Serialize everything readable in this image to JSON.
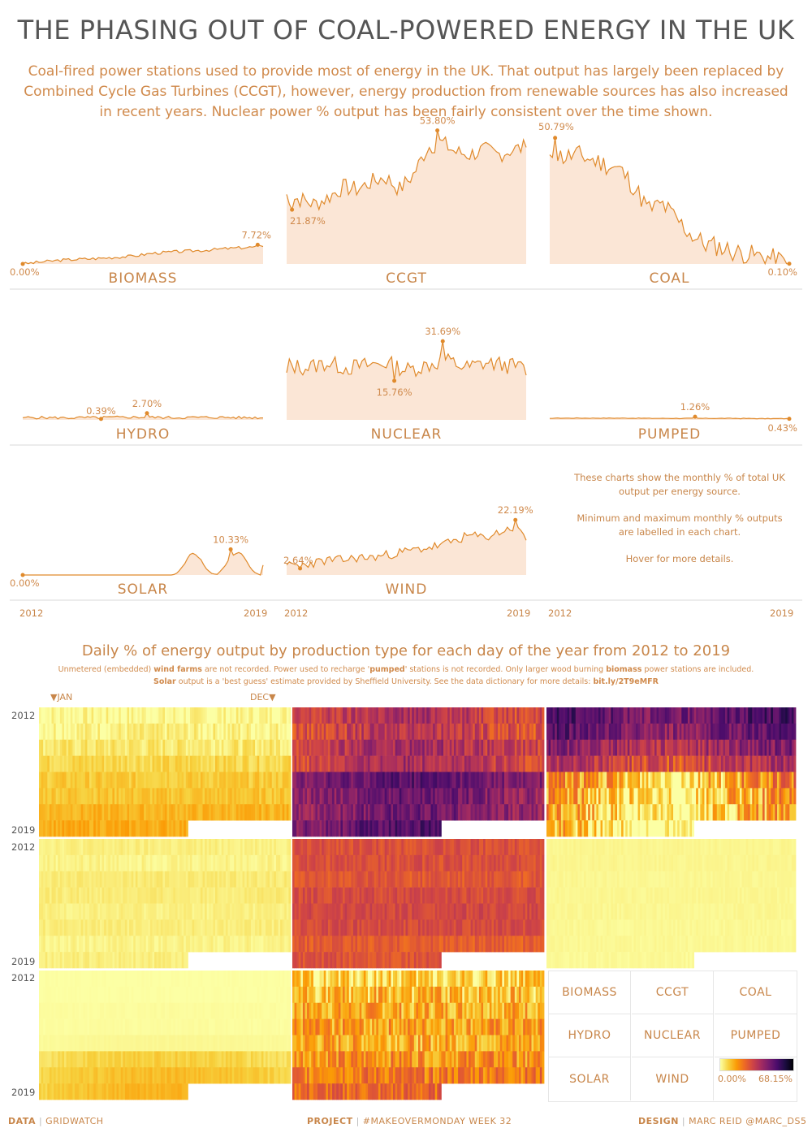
{
  "title": "THE PHASING OUT OF COAL-POWERED ENERGY IN THE UK",
  "subtitle": "Coal-fired power stations used to provide most of energy in the UK.  That output has largely been replaced by Combined Cycle Gas Turbines (CCGT), however, energy production from renewable sources has also increased in recent years.  Nuclear power % output has been fairly consistent over the time shown.",
  "notes": [
    "These charts show the monthly % of total UK output per energy source.",
    "Minimum and maximum monthly % outputs are labelled in each chart.",
    "Hover for more details."
  ],
  "colors": {
    "accent": "#e08a2c",
    "area_fill": "#fbe6d6",
    "text": "#d08a4c",
    "title": "#555555"
  },
  "chart_data": [
    {
      "type": "area",
      "title": "Monthly % of total UK output per energy source",
      "x_range": [
        "2012",
        "2019"
      ],
      "x_tick_labels": [
        "2012",
        "2019"
      ],
      "panels": [
        {
          "name": "BIOMASS",
          "ylim": [
            0,
            54
          ],
          "start": 0.0,
          "end": 7.0,
          "min": {
            "label": "0.00%",
            "value": 0.0,
            "t": 0.0
          },
          "max": {
            "label": "7.72%",
            "value": 7.72,
            "t": 0.98
          },
          "trend": [
            0.0,
            0.8,
            1.5,
            1.9,
            2.2,
            2.7,
            3.2,
            4.3,
            4.8,
            5.2,
            5.6,
            6.2,
            6.6,
            7.0
          ],
          "noise": 0.6,
          "seed": 3
        },
        {
          "name": "CCGT",
          "ylim": [
            0,
            54
          ],
          "start": 28,
          "end": 47,
          "min": {
            "label": "21.87%",
            "value": 21.87,
            "t": 0.02
          },
          "max": {
            "label": "53.80%",
            "value": 53.8,
            "t": 0.63
          },
          "trend": [
            27,
            26,
            24,
            27,
            31,
            30,
            33,
            35,
            30,
            36,
            47,
            49,
            45,
            44,
            46,
            44,
            46,
            47
          ],
          "noise": 3.5,
          "seed": 7
        },
        {
          "name": "COAL",
          "ylim": [
            0,
            54
          ],
          "start": 44,
          "end": 0.1,
          "min": {
            "label": "0.10%",
            "value": 0.1,
            "t": 1.0
          },
          "max": {
            "label": "50.79%",
            "value": 50.79,
            "t": 0.02
          },
          "trend": [
            45,
            43,
            44,
            42,
            40,
            38,
            31,
            22,
            24,
            18,
            12,
            8,
            7,
            5,
            4,
            3,
            2,
            0.5
          ],
          "noise": 4.2,
          "seed": 11
        },
        {
          "name": "HYDRO",
          "ylim": [
            0,
            54
          ],
          "start": 0.9,
          "end": 0.8,
          "min": {
            "label": "0.39%",
            "value": 0.39,
            "t": 0.33
          },
          "max": {
            "label": "2.70%",
            "value": 2.7,
            "t": 0.52
          },
          "trend": [
            1.0,
            0.9,
            0.8,
            0.9,
            1.0,
            1.1,
            1.0,
            0.9,
            1.0,
            1.0,
            0.9,
            0.9
          ],
          "noise": 0.55,
          "seed": 5
        },
        {
          "name": "NUCLEAR",
          "ylim": [
            0,
            54
          ],
          "start": 19,
          "end": 18,
          "min": {
            "label": "15.76%",
            "value": 15.76,
            "t": 0.45
          },
          "max": {
            "label": "31.69%",
            "value": 31.69,
            "t": 0.65
          },
          "trend": [
            22,
            21,
            23,
            21,
            22,
            23,
            20,
            22,
            24,
            21,
            23,
            22,
            21
          ],
          "noise": 3.4,
          "seed": 13
        },
        {
          "name": "PUMPED",
          "ylim": [
            0,
            54
          ],
          "start": 0.6,
          "end": 0.43,
          "min": {
            "label": "0.43%",
            "value": 0.43,
            "t": 1.0
          },
          "max": {
            "label": "1.26%",
            "value": 1.26,
            "t": 0.61
          },
          "trend": [
            0.7,
            0.7,
            0.7,
            0.7,
            0.6,
            0.6,
            0.6,
            0.6,
            0.5,
            0.5
          ],
          "noise": 0.12,
          "seed": 17
        },
        {
          "name": "SOLAR",
          "ylim": [
            0,
            54
          ],
          "start": 0.0,
          "end": 4.0,
          "min": {
            "label": "0.00%",
            "value": 0.0,
            "t": 0.0
          },
          "max": {
            "label": "10.33%",
            "value": 10.33,
            "t": 0.86
          },
          "seasonal": true,
          "seed": 19
        },
        {
          "name": "WIND",
          "ylim": [
            0,
            54
          ],
          "start": 4,
          "end": 14,
          "min": {
            "label": "2.64%",
            "value": 2.64,
            "t": 0.06
          },
          "max": {
            "label": "22.19%",
            "value": 22.19,
            "t": 0.95
          },
          "trend": [
            4,
            4,
            5,
            6,
            6,
            7,
            7,
            8,
            9,
            10,
            11,
            12,
            14,
            16,
            15,
            17,
            19,
            16
          ],
          "noise": 1.9,
          "seed": 23
        }
      ]
    },
    {
      "type": "heatmap",
      "title": "Daily % of energy output by production type for each day of the year from 2012 to 2019",
      "years": [
        "2012",
        "2013",
        "2014",
        "2015",
        "2016",
        "2017",
        "2018",
        "2019"
      ],
      "month_markers": [
        "▼JAN",
        "DEC▼"
      ],
      "color_scale": {
        "min": 0.0,
        "max": 68.15,
        "min_label": "0.00%",
        "max_label": "68.15%",
        "palette": "inferno"
      },
      "last_year_fraction": 0.59,
      "panels": [
        {
          "name": "BIOMASS",
          "year_means": [
            0.5,
            1.2,
            2.2,
            4.0,
            5.2,
            5.8,
            7.5,
            8.5
          ],
          "variance": 2.0
        },
        {
          "name": "CCGT",
          "year_means": [
            28,
            26,
            30,
            29,
            45,
            42,
            41,
            46
          ],
          "variance": 8.0
        },
        {
          "name": "COAL",
          "year_means": [
            48,
            44,
            36,
            27,
            9,
            6,
            5,
            2.5
          ],
          "variance": 9.0
        },
        {
          "name": "HYDRO",
          "year_means": [
            1.3,
            1.0,
            1.8,
            1.7,
            1.2,
            1.5,
            1.0,
            1.4
          ],
          "variance": 0.8
        },
        {
          "name": "NUCLEAR",
          "year_means": [
            22,
            22,
            20,
            23,
            24,
            23,
            19,
            21
          ],
          "variance": 4.0
        },
        {
          "name": "PUMPED",
          "year_means": [
            0.7,
            0.7,
            0.6,
            0.6,
            0.6,
            0.5,
            0.5,
            0.4
          ],
          "variance": 0.3
        },
        {
          "name": "SOLAR",
          "year_means": [
            0.0,
            0.0,
            0.1,
            0.1,
            0.3,
            2.5,
            3.5,
            4.0
          ],
          "variance": 2.5
        },
        {
          "name": "WIND",
          "year_means": [
            4,
            7,
            9,
            10,
            9,
            12,
            15,
            17
          ],
          "variance": 7.0
        }
      ]
    }
  ],
  "heatmap": {
    "title": "Daily % of energy output by production type for each day of the year from 2012 to 2019",
    "sub1_a": "Unmetered (embedded) ",
    "sub1_b": "wind farms",
    "sub1_c": " are not recorded.  Power used to recharge '",
    "sub1_d": "pumped",
    "sub1_e": "' stations is not recorded.  Only larger wood burning ",
    "sub1_f": "biomass",
    "sub1_g": " power stations are included.",
    "sub2_a": "Solar",
    "sub2_b": " output is a 'best guess'  estimate provided by Sheffield University.  See the data dictionary for more details:  ",
    "sub2_c": "bit.ly/2T9eMFR",
    "jan": "▼JAN",
    "dec": "DEC▼",
    "year_start": "2012",
    "year_end": "2019"
  },
  "legend": {
    "labels": [
      "BIOMASS",
      "CCGT",
      "COAL",
      "HYDRO",
      "NUCLEAR",
      "PUMPED",
      "SOLAR",
      "WIND"
    ],
    "min": "0.00%",
    "max": "68.15%"
  },
  "footer": {
    "data_label": "DATA",
    "data_value": "GRIDWATCH",
    "project_label": "PROJECT",
    "project_value": "#MAKEOVERMONDAY WEEK 32",
    "design_label": "DESIGN",
    "design_value": "MARC REID @MARC_DS5",
    "sep": "|"
  }
}
